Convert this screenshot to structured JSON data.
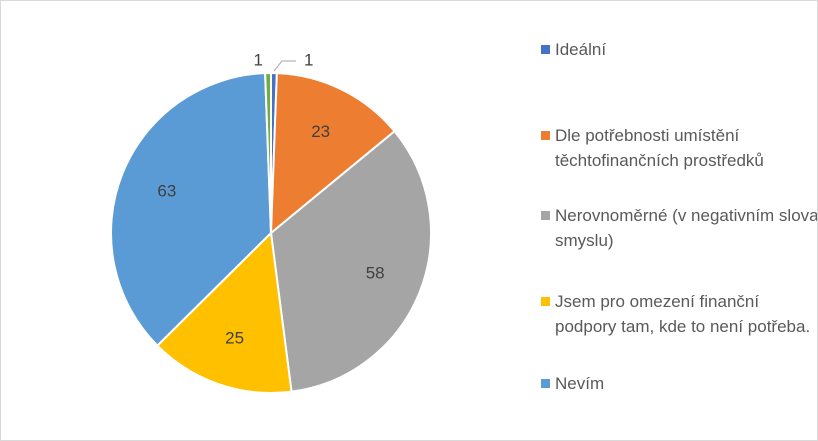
{
  "chart_data": {
    "type": "pie",
    "categories": [
      "Ideální",
      "Dle potřebnosti umístění těchtofinančních prostředků",
      "Nerovnoměrné (v negativním slova smyslu)",
      "Jsem pro omezení finanční podpory tam, kde to není potřeba.",
      "Nevím",
      null
    ],
    "values": [
      1,
      23,
      58,
      25,
      63,
      1
    ],
    "colors": [
      "#4472c4",
      "#ed7d31",
      "#a5a5a5",
      "#ffc000",
      "#5b9bd5",
      "#70ad47"
    ],
    "legend": "right"
  }
}
